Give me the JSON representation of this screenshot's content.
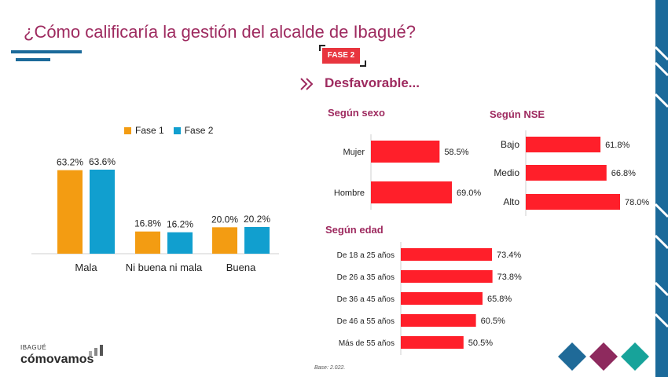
{
  "title": "¿Cómo calificaría la gestión del alcalde de Ibagué?",
  "phase_tag": "FASE 2",
  "section_title": "Desfavorable...",
  "base_note": "Base: 2.022.",
  "logo": {
    "top": "IBAGUÉ",
    "main": "cómovamos"
  },
  "colors": {
    "title": "#9e2a5f",
    "fase1": "#f39c12",
    "fase2": "#119fcf",
    "bar_red": "#ff1f2a",
    "stripe_blue": "#1b6a9a",
    "diamond_blue": "#1f6a98",
    "diamond_purple": "#8e2a5e",
    "diamond_teal": "#17a39a"
  },
  "subtitles": {
    "sexo": "Según sexo",
    "nse": "Según NSE",
    "edad": "Según edad"
  },
  "chart_data": [
    {
      "type": "bar",
      "categories": [
        "Mala",
        "Ni buena ni mala",
        "Buena"
      ],
      "series": [
        {
          "name": "Fase 1",
          "values": [
            63.2,
            16.8,
            20.0
          ],
          "labels": [
            "63.2%",
            "16.8%",
            "20.0%"
          ]
        },
        {
          "name": "Fase 2",
          "values": [
            63.6,
            16.2,
            20.2
          ],
          "labels": [
            "63.6%",
            "16.2%",
            "20.2%"
          ]
        }
      ],
      "ylim": [
        0,
        70
      ]
    },
    {
      "type": "bar",
      "title": "Según sexo",
      "orientation": "horizontal",
      "categories": [
        "Mujer",
        "Hombre"
      ],
      "values": [
        58.5,
        69.0
      ],
      "labels": [
        "58.5%",
        "69.0%"
      ]
    },
    {
      "type": "bar",
      "title": "Según NSE",
      "orientation": "horizontal",
      "categories": [
        "Bajo",
        "Medio",
        "Alto"
      ],
      "values": [
        61.8,
        66.8,
        78.0
      ],
      "labels": [
        "61.8%",
        "66.8%",
        "78.0%"
      ]
    },
    {
      "type": "bar",
      "title": "Según edad",
      "orientation": "horizontal",
      "categories": [
        "De 18 a 25 años",
        "De 26 a 35 años",
        "De 36 a 45 años",
        "De 46 a 55 años",
        "Más de 55 años"
      ],
      "values": [
        73.4,
        73.8,
        65.8,
        60.5,
        50.5
      ],
      "labels": [
        "73.4%",
        "73.8%",
        "65.8%",
        "60.5%",
        "50.5%"
      ]
    }
  ]
}
